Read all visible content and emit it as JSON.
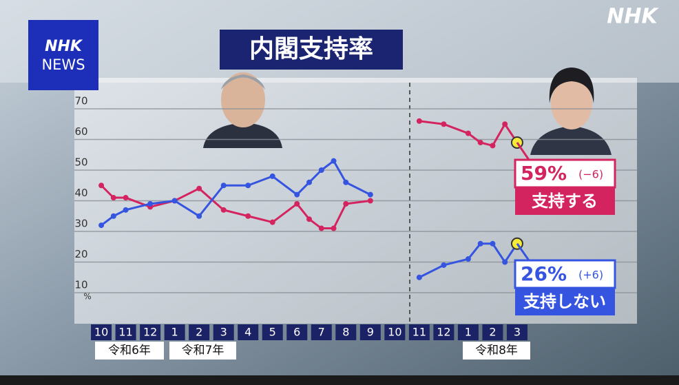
{
  "logo": {
    "top": "NHK",
    "bottom": "NEWS"
  },
  "watermark": "NHK",
  "chart_data": {
    "type": "line",
    "title": "内閣支持率",
    "x": [
      0,
      0.5,
      1,
      2,
      3,
      4,
      5,
      6,
      7,
      8,
      8.5,
      9,
      9.5,
      10,
      11,
      12,
      13,
      14,
      15,
      15.5,
      16,
      16.5,
      17
    ],
    "xlim": [
      -1.1,
      21.9
    ],
    "xticks": [
      {
        "value": 0,
        "label": "10"
      },
      {
        "value": 1,
        "label": "11"
      },
      {
        "value": 2,
        "label": "12"
      },
      {
        "value": 3,
        "label": "1"
      },
      {
        "value": 4,
        "label": "2"
      },
      {
        "value": 5,
        "label": "3"
      },
      {
        "value": 6,
        "label": "4"
      },
      {
        "value": 7,
        "label": "5"
      },
      {
        "value": 8,
        "label": "6"
      },
      {
        "value": 9,
        "label": "7"
      },
      {
        "value": 10,
        "label": "8"
      },
      {
        "value": 11,
        "label": "9"
      },
      {
        "value": 12,
        "label": "10"
      },
      {
        "value": 13,
        "label": "11"
      },
      {
        "value": 14,
        "label": "12"
      },
      {
        "value": 15,
        "label": "1"
      },
      {
        "value": 16,
        "label": "2"
      },
      {
        "value": 17,
        "label": "3"
      }
    ],
    "x_group_labels": [
      "令和6年",
      "令和7年",
      "令和8年"
    ],
    "ylim": [
      0,
      80
    ],
    "yticks": [
      10,
      20,
      30,
      40,
      50,
      60,
      70
    ],
    "y_unit": "%",
    "grid": true,
    "series": [
      {
        "name": "支持する",
        "color": "#d4245f",
        "values": [
          45,
          41,
          41,
          38,
          40,
          44,
          37,
          35,
          33,
          39,
          34,
          31,
          31,
          39,
          40,
          null,
          66,
          65,
          62,
          59,
          58,
          65,
          59
        ],
        "value_labels": [
          null,
          null,
          null,
          null,
          null,
          null,
          null,
          null,
          null,
          null,
          null,
          null,
          null,
          null,
          null,
          null,
          null,
          null,
          null,
          null,
          null,
          null,
          "59%"
        ],
        "change": "(−6)"
      },
      {
        "name": "支持しない",
        "color": "#3554e0",
        "values": [
          32,
          35,
          37,
          39,
          40,
          35,
          45,
          45,
          48,
          42,
          46,
          50,
          53,
          46,
          42,
          null,
          15,
          19,
          21,
          26,
          26,
          20,
          26
        ],
        "value_labels": [
          null,
          null,
          null,
          null,
          null,
          null,
          null,
          null,
          null,
          null,
          null,
          null,
          null,
          null,
          null,
          null,
          null,
          null,
          null,
          null,
          null,
          null,
          "26%"
        ],
        "change": "(+6)"
      }
    ]
  }
}
